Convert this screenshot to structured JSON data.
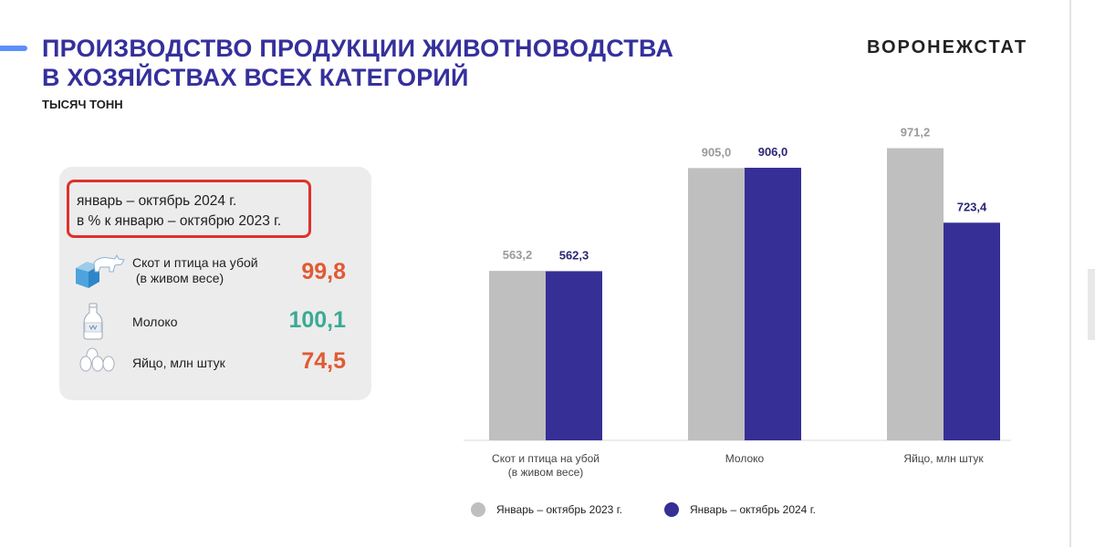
{
  "header": {
    "title_line1": "ПРОИЗВОДСТВО ПРОДУКЦИИ ЖИВОТНОВОДСТВА",
    "title_line2": "В ХОЗЯЙСТВАХ ВСЕХ КАТЕГОРИЙ",
    "units": "ТЫСЯЧ ТОНН",
    "brand": "ВОРОНЕЖСТАТ"
  },
  "panel": {
    "period_line1": "январь – октябрь 2024 г.",
    "period_line2": "в % к январю – октябрю 2023 г.",
    "indicators": [
      {
        "label_line1": "Скот и птица на убой",
        "label_line2": " (в живом весе)",
        "value": "99,8",
        "color": "#e05a34",
        "icon": "cow-icon"
      },
      {
        "label_line1": "Молоко",
        "label_line2": "",
        "value": "100,1",
        "color": "#3aaa96",
        "icon": "milk-bottle-icon"
      },
      {
        "label_line1": "Яйцо, млн штук",
        "label_line2": "",
        "value": "74,5",
        "color": "#e05a34",
        "icon": "eggs-icon"
      }
    ]
  },
  "chart_data": {
    "type": "bar",
    "title": "",
    "xlabel": "",
    "ylabel": "ТЫСЯЧ ТОНН",
    "ylim": [
      0,
      1100
    ],
    "grid": false,
    "legend_position": "bottom",
    "categories": [
      [
        "Скот и птица на убой",
        "(в живом весе)"
      ],
      [
        "Молоко"
      ],
      [
        "Яйцо, млн штук"
      ]
    ],
    "series": [
      {
        "name": "Январь – октябрь 2023 г.",
        "values": [
          563.2,
          905.0,
          971.2
        ],
        "labels": [
          "563,2",
          "905,0",
          "971,2"
        ],
        "color": "#bfbfbf",
        "label_color": "#9a9a9a"
      },
      {
        "name": "Январь – октябрь 2024 г.",
        "values": [
          562.3,
          906.0,
          723.4
        ],
        "labels": [
          "562,3",
          "906,0",
          "723,4"
        ],
        "color": "#352f96",
        "label_color": "#2b2675"
      }
    ]
  }
}
